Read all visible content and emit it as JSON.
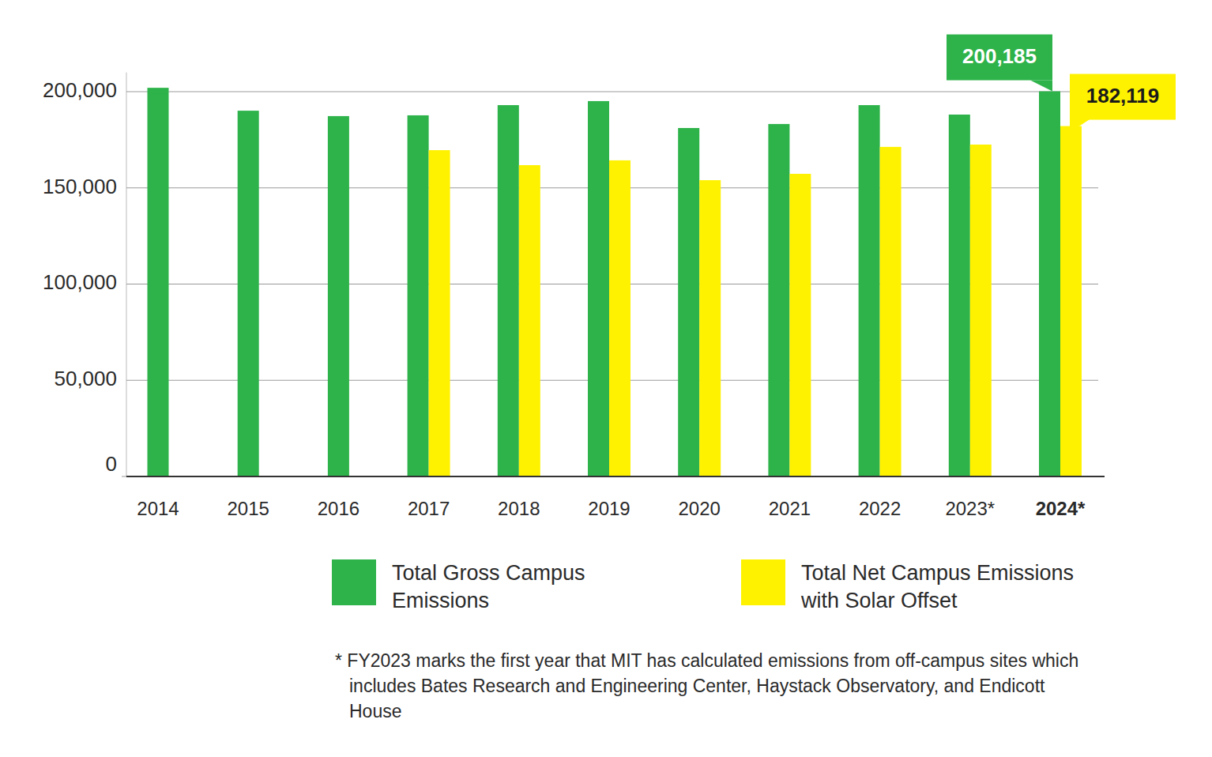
{
  "chart_data": {
    "type": "bar",
    "categories": [
      "2014",
      "2015",
      "2016",
      "2017",
      "2018",
      "2019",
      "2020",
      "2021",
      "2022",
      "2023*",
      "2024*"
    ],
    "series": [
      {
        "name": "Total Gross Campus Emissions",
        "color": "#2db34a",
        "values": [
          202000,
          190100,
          187300,
          187700,
          193000,
          195100,
          181100,
          183200,
          193000,
          188100,
          200185
        ]
      },
      {
        "name": "Total Net Campus Emissions with Solar Offset",
        "color": "#fff200",
        "values": [
          null,
          null,
          null,
          169600,
          161800,
          164300,
          154000,
          157300,
          171300,
          172500,
          182119
        ]
      }
    ],
    "ylim": [
      0,
      210000
    ],
    "yticks": [
      {
        "value": 200000,
        "label": "200,000"
      },
      {
        "value": 150000,
        "label": "150,000"
      },
      {
        "value": 100000,
        "label": "100,000"
      },
      {
        "value": 50000,
        "label": "50,000"
      },
      0
    ],
    "grid": true,
    "legend": "bottom",
    "annotations": [
      {
        "label": "200,185",
        "category": "2024*",
        "series": "Total Gross Campus Emissions"
      },
      {
        "label": "182,119",
        "category": "2024*",
        "series": "Total Net Campus Emissions with Solar Offset"
      }
    ],
    "footnote": "* FY2023 marks the first year that MIT has calculated emissions from off-campus sites which includes Bates Research and Engineering Center, Haystack Observatory, and Endicott House"
  }
}
